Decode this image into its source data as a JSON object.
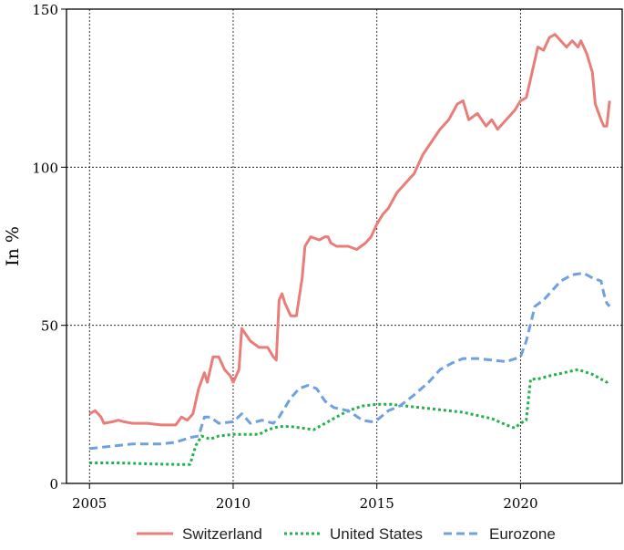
{
  "chart_data": {
    "type": "line",
    "title": "",
    "xlabel": "",
    "ylabel": "In %",
    "xlim": [
      2004.2,
      2023.6
    ],
    "ylim": [
      0,
      150
    ],
    "xticks": [
      "2005",
      "2010",
      "2015",
      "2020"
    ],
    "xtick_values": [
      2005,
      2010,
      2015,
      2020
    ],
    "yticks": [
      "0",
      "50",
      "100",
      "150"
    ],
    "ytick_values": [
      0,
      50,
      100,
      150
    ],
    "grid": true,
    "legend_position": "bottom",
    "series": [
      {
        "name": "Switzerland",
        "color": "#e87d7a",
        "dash": "solid",
        "points": [
          [
            2005.0,
            22
          ],
          [
            2005.2,
            23
          ],
          [
            2005.4,
            21
          ],
          [
            2005.5,
            19
          ],
          [
            2005.8,
            19.5
          ],
          [
            2006.0,
            20
          ],
          [
            2006.2,
            19.5
          ],
          [
            2006.5,
            19
          ],
          [
            2007.0,
            19
          ],
          [
            2007.5,
            18.5
          ],
          [
            2008.0,
            18.5
          ],
          [
            2008.2,
            21
          ],
          [
            2008.4,
            20
          ],
          [
            2008.6,
            22
          ],
          [
            2008.8,
            30
          ],
          [
            2009.0,
            35
          ],
          [
            2009.1,
            32
          ],
          [
            2009.3,
            40
          ],
          [
            2009.5,
            40
          ],
          [
            2009.7,
            36
          ],
          [
            2009.9,
            34
          ],
          [
            2010.0,
            32
          ],
          [
            2010.2,
            36
          ],
          [
            2010.3,
            49
          ],
          [
            2010.6,
            45
          ],
          [
            2010.9,
            43
          ],
          [
            2011.2,
            43
          ],
          [
            2011.4,
            40
          ],
          [
            2011.5,
            39
          ],
          [
            2011.6,
            58
          ],
          [
            2011.7,
            60
          ],
          [
            2011.8,
            57
          ],
          [
            2012.0,
            53
          ],
          [
            2012.2,
            53
          ],
          [
            2012.4,
            65
          ],
          [
            2012.5,
            75
          ],
          [
            2012.7,
            78
          ],
          [
            2013.0,
            77
          ],
          [
            2013.2,
            78
          ],
          [
            2013.3,
            78
          ],
          [
            2013.4,
            76
          ],
          [
            2013.6,
            75
          ],
          [
            2014.0,
            75
          ],
          [
            2014.3,
            74
          ],
          [
            2014.6,
            76
          ],
          [
            2014.8,
            78
          ],
          [
            2015.0,
            82
          ],
          [
            2015.2,
            85
          ],
          [
            2015.4,
            87
          ],
          [
            2015.7,
            92
          ],
          [
            2016.0,
            95
          ],
          [
            2016.3,
            98
          ],
          [
            2016.6,
            104
          ],
          [
            2016.9,
            108
          ],
          [
            2017.2,
            112
          ],
          [
            2017.5,
            115
          ],
          [
            2017.8,
            120
          ],
          [
            2018.0,
            121
          ],
          [
            2018.2,
            115
          ],
          [
            2018.5,
            117
          ],
          [
            2018.8,
            113
          ],
          [
            2019.0,
            115
          ],
          [
            2019.2,
            112
          ],
          [
            2019.5,
            115
          ],
          [
            2019.8,
            118
          ],
          [
            2020.0,
            121
          ],
          [
            2020.2,
            122
          ],
          [
            2020.4,
            130
          ],
          [
            2020.6,
            138
          ],
          [
            2020.8,
            137
          ],
          [
            2021.0,
            141
          ],
          [
            2021.2,
            142
          ],
          [
            2021.4,
            140
          ],
          [
            2021.6,
            138
          ],
          [
            2021.8,
            140
          ],
          [
            2022.0,
            138
          ],
          [
            2022.1,
            140
          ],
          [
            2022.3,
            136
          ],
          [
            2022.5,
            130
          ],
          [
            2022.6,
            120
          ],
          [
            2022.8,
            115
          ],
          [
            2022.9,
            113
          ],
          [
            2023.0,
            113
          ],
          [
            2023.1,
            121
          ]
        ]
      },
      {
        "name": "United States",
        "color": "#22b14c",
        "dash": "dotted",
        "points": [
          [
            2005.0,
            6.5
          ],
          [
            2006.0,
            6.5
          ],
          [
            2007.0,
            6.2
          ],
          [
            2008.0,
            6.0
          ],
          [
            2008.5,
            6.0
          ],
          [
            2008.7,
            12
          ],
          [
            2008.9,
            15
          ],
          [
            2009.2,
            14
          ],
          [
            2009.5,
            15
          ],
          [
            2010.0,
            15.5
          ],
          [
            2010.5,
            15.5
          ],
          [
            2010.9,
            15.5
          ],
          [
            2011.2,
            17
          ],
          [
            2011.6,
            18
          ],
          [
            2012.0,
            18
          ],
          [
            2012.4,
            17.5
          ],
          [
            2012.8,
            17
          ],
          [
            2013.2,
            19
          ],
          [
            2013.6,
            21
          ],
          [
            2014.0,
            23
          ],
          [
            2014.5,
            24.5
          ],
          [
            2015.0,
            25
          ],
          [
            2015.5,
            25
          ],
          [
            2016.0,
            24.5
          ],
          [
            2016.5,
            24
          ],
          [
            2017.0,
            23.5
          ],
          [
            2017.5,
            23
          ],
          [
            2018.0,
            22.5
          ],
          [
            2018.5,
            21.5
          ],
          [
            2019.0,
            20.5
          ],
          [
            2019.5,
            18.5
          ],
          [
            2019.8,
            17.5
          ],
          [
            2020.0,
            19
          ],
          [
            2020.2,
            20
          ],
          [
            2020.35,
            33
          ],
          [
            2020.6,
            33
          ],
          [
            2021.0,
            34
          ],
          [
            2021.5,
            35
          ],
          [
            2022.0,
            36
          ],
          [
            2022.5,
            34.5
          ],
          [
            2023.0,
            32
          ],
          [
            2023.1,
            32.5
          ]
        ]
      },
      {
        "name": "Eurozone",
        "color": "#6fa0e0",
        "dash": "dashed",
        "points": [
          [
            2005.0,
            11
          ],
          [
            2005.5,
            11.5
          ],
          [
            2006.0,
            12
          ],
          [
            2006.5,
            12.5
          ],
          [
            2007.0,
            12.5
          ],
          [
            2007.5,
            12.5
          ],
          [
            2008.0,
            13
          ],
          [
            2008.5,
            14.5
          ],
          [
            2008.8,
            15
          ],
          [
            2009.0,
            21
          ],
          [
            2009.2,
            21
          ],
          [
            2009.5,
            19
          ],
          [
            2010.0,
            19.5
          ],
          [
            2010.3,
            22
          ],
          [
            2010.6,
            19
          ],
          [
            2011.0,
            20
          ],
          [
            2011.4,
            19
          ],
          [
            2011.6,
            21
          ],
          [
            2012.0,
            27
          ],
          [
            2012.3,
            30
          ],
          [
            2012.6,
            31
          ],
          [
            2012.9,
            30
          ],
          [
            2013.2,
            26
          ],
          [
            2013.5,
            24
          ],
          [
            2014.0,
            23
          ],
          [
            2014.5,
            20
          ],
          [
            2014.8,
            19.5
          ],
          [
            2015.0,
            20
          ],
          [
            2015.4,
            23
          ],
          [
            2015.8,
            24.5
          ],
          [
            2016.3,
            28
          ],
          [
            2016.8,
            32
          ],
          [
            2017.2,
            36
          ],
          [
            2017.6,
            38
          ],
          [
            2018.0,
            39.5
          ],
          [
            2018.5,
            39.5
          ],
          [
            2019.0,
            39
          ],
          [
            2019.5,
            38.5
          ],
          [
            2020.0,
            40
          ],
          [
            2020.2,
            45
          ],
          [
            2020.5,
            56
          ],
          [
            2020.8,
            58
          ],
          [
            2021.0,
            60
          ],
          [
            2021.4,
            64
          ],
          [
            2021.8,
            66
          ],
          [
            2022.2,
            66.5
          ],
          [
            2022.5,
            65
          ],
          [
            2022.8,
            64
          ],
          [
            2022.9,
            60
          ],
          [
            2023.0,
            57
          ],
          [
            2023.1,
            56
          ]
        ]
      }
    ]
  }
}
